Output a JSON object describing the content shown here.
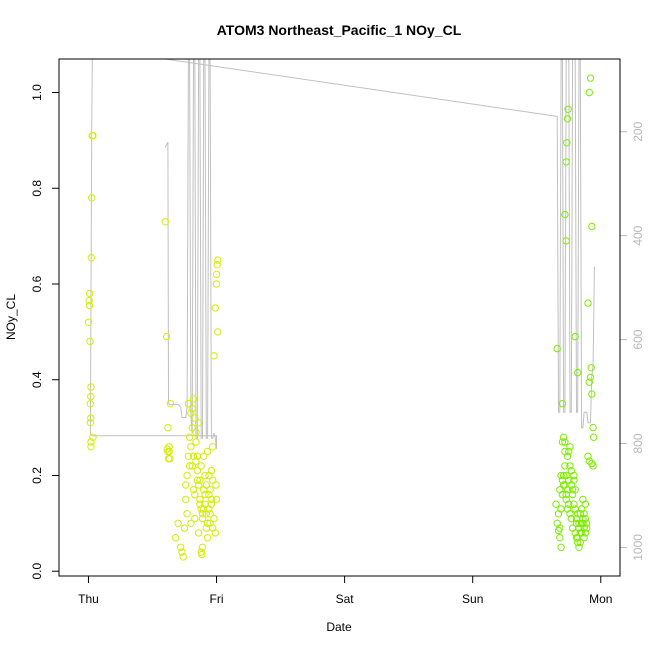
{
  "chart_data": {
    "type": "scatter",
    "title": "ATOM3 Northeast_Pacific_1 NOy_CL",
    "xlabel": "Date",
    "ylabel": "NOy_CL",
    "x_tick_labels": [
      "Thu",
      "Fri",
      "Sat",
      "Sun",
      "Mon"
    ],
    "x_ticks_days": [
      0,
      1,
      2,
      3,
      4
    ],
    "xlim_days": [
      -0.23,
      4.15
    ],
    "ylim": [
      -0.01,
      1.07
    ],
    "y_ticks": [
      0.0,
      0.2,
      0.4,
      0.6,
      0.8,
      1.0
    ],
    "y_tick_labels": [
      "0.0",
      "0.2",
      "0.4",
      "0.6",
      "0.8",
      "1.0"
    ],
    "right_axis": {
      "label": "",
      "lim_reversed": [
        1055,
        60
      ],
      "ticks": [
        200,
        400,
        600,
        800,
        1000
      ],
      "tick_labels": [
        "200",
        "400",
        "600",
        "800",
        "1000"
      ],
      "color": "#b8b8b8"
    },
    "grid": false,
    "colors": {
      "points_early": "#d4ee00",
      "points_late": "#7cee00",
      "line": "#c0c0c0",
      "frame": "#000000"
    },
    "series": [
      {
        "kind": "points",
        "points": [
          [
            0.0,
            0.52
          ],
          [
            0.005,
            0.565
          ],
          [
            0.01,
            0.58
          ],
          [
            0.008,
            0.555
          ],
          [
            0.012,
            0.48
          ],
          [
            0.014,
            0.35
          ],
          [
            0.018,
            0.365
          ],
          [
            0.02,
            0.385
          ],
          [
            0.015,
            0.31
          ],
          [
            0.018,
            0.32
          ],
          [
            0.02,
            0.27
          ],
          [
            0.02,
            0.26
          ],
          [
            0.022,
            0.655
          ],
          [
            0.025,
            0.78
          ],
          [
            0.03,
            0.91
          ],
          [
            0.035,
            0.91
          ],
          [
            0.035,
            0.28
          ],
          [
            0.6,
            0.73
          ],
          [
            0.61,
            0.49
          ],
          [
            0.62,
            0.3
          ],
          [
            0.615,
            0.255
          ],
          [
            0.62,
            0.25
          ],
          [
            0.625,
            0.235
          ],
          [
            0.63,
            0.26
          ],
          [
            0.63,
            0.25
          ],
          [
            0.635,
            0.235
          ],
          [
            0.64,
            0.35
          ],
          [
            0.68,
            0.07
          ],
          [
            0.7,
            0.1
          ],
          [
            0.72,
            0.05
          ],
          [
            0.73,
            0.04
          ],
          [
            0.74,
            0.03
          ],
          [
            0.75,
            0.09
          ],
          [
            0.76,
            0.15
          ],
          [
            0.77,
            0.12
          ],
          [
            0.78,
            0.35
          ],
          [
            0.79,
            0.22
          ],
          [
            0.8,
            0.26
          ],
          [
            0.81,
            0.3
          ],
          [
            0.82,
            0.17
          ],
          [
            0.83,
            0.11
          ],
          [
            0.84,
            0.23
          ],
          [
            0.85,
            0.19
          ],
          [
            0.86,
            0.31
          ],
          [
            0.87,
            0.14
          ],
          [
            0.88,
            0.04
          ],
          [
            0.885,
            0.035
          ],
          [
            0.89,
            0.05
          ],
          [
            0.9,
            0.13
          ],
          [
            0.91,
            0.2
          ],
          [
            0.92,
            0.09
          ],
          [
            0.93,
            0.25
          ],
          [
            0.94,
            0.16
          ],
          [
            0.95,
            0.12
          ],
          [
            0.96,
            0.21
          ],
          [
            0.97,
            0.26
          ],
          [
            0.98,
            0.45
          ],
          [
            0.99,
            0.55
          ],
          [
            1.0,
            0.6
          ],
          [
            1.0,
            0.62
          ],
          [
            1.005,
            0.64
          ],
          [
            1.01,
            0.65
          ],
          [
            1.01,
            0.5
          ],
          [
            1.0,
            0.15
          ],
          [
            0.995,
            0.18
          ],
          [
            0.76,
            0.18
          ],
          [
            0.77,
            0.2
          ],
          [
            0.78,
            0.24
          ],
          [
            0.79,
            0.28
          ],
          [
            0.8,
            0.1
          ],
          [
            0.81,
            0.22
          ],
          [
            0.82,
            0.24
          ],
          [
            0.83,
            0.16
          ],
          [
            0.84,
            0.27
          ],
          [
            0.85,
            0.21
          ],
          [
            0.86,
            0.08
          ],
          [
            0.87,
            0.19
          ],
          [
            0.88,
            0.22
          ],
          [
            0.89,
            0.11
          ],
          [
            0.9,
            0.24
          ],
          [
            0.91,
            0.16
          ],
          [
            0.92,
            0.18
          ],
          [
            0.93,
            0.07
          ],
          [
            0.94,
            0.2
          ],
          [
            0.95,
            0.1
          ],
          [
            0.96,
            0.14
          ],
          [
            0.97,
            0.09
          ],
          [
            0.98,
            0.11
          ],
          [
            0.99,
            0.08
          ],
          [
            0.8,
            0.33
          ],
          [
            0.81,
            0.34
          ],
          [
            0.82,
            0.36
          ],
          [
            0.83,
            0.32
          ],
          [
            0.84,
            0.29
          ],
          [
            0.85,
            0.24
          ],
          [
            0.86,
            0.18
          ],
          [
            0.87,
            0.15
          ],
          [
            0.88,
            0.13
          ],
          [
            0.89,
            0.12
          ],
          [
            0.9,
            0.17
          ],
          [
            0.91,
            0.14
          ],
          [
            0.92,
            0.12
          ],
          [
            0.93,
            0.1
          ],
          [
            0.94,
            0.13
          ],
          [
            0.95,
            0.17
          ],
          [
            0.96,
            0.15
          ],
          [
            0.97,
            0.19
          ]
        ]
      },
      {
        "kind": "points",
        "points": [
          [
            3.66,
            0.465
          ],
          [
            3.7,
            0.35
          ],
          [
            3.72,
            0.27
          ],
          [
            3.72,
            0.745
          ],
          [
            3.73,
            0.69
          ],
          [
            3.73,
            0.855
          ],
          [
            3.735,
            0.895
          ],
          [
            3.74,
            0.945
          ],
          [
            3.745,
            0.965
          ],
          [
            3.8,
            0.49
          ],
          [
            3.82,
            0.415
          ],
          [
            3.9,
            0.56
          ],
          [
            3.91,
            1.0
          ],
          [
            3.92,
            1.03
          ],
          [
            3.93,
            0.72
          ],
          [
            3.91,
            0.395
          ],
          [
            3.92,
            0.405
          ],
          [
            3.925,
            0.425
          ],
          [
            3.93,
            0.37
          ],
          [
            3.94,
            0.3
          ],
          [
            3.945,
            0.28
          ],
          [
            3.94,
            0.22
          ],
          [
            3.93,
            0.225
          ],
          [
            3.65,
            0.14
          ],
          [
            3.66,
            0.1
          ],
          [
            3.67,
            0.085
          ],
          [
            3.68,
            0.07
          ],
          [
            3.69,
            0.05
          ],
          [
            3.7,
            0.19
          ],
          [
            3.71,
            0.2
          ],
          [
            3.72,
            0.18
          ],
          [
            3.73,
            0.16
          ],
          [
            3.74,
            0.24
          ],
          [
            3.75,
            0.25
          ],
          [
            3.76,
            0.22
          ],
          [
            3.77,
            0.11
          ],
          [
            3.78,
            0.09
          ],
          [
            3.79,
            0.19
          ],
          [
            3.8,
            0.17
          ],
          [
            3.81,
            0.07
          ],
          [
            3.82,
            0.06
          ],
          [
            3.83,
            0.1
          ],
          [
            3.84,
            0.12
          ],
          [
            3.85,
            0.13
          ],
          [
            3.86,
            0.11
          ],
          [
            3.87,
            0.09
          ],
          [
            3.88,
            0.14
          ],
          [
            3.89,
            0.1
          ],
          [
            3.9,
            0.24
          ],
          [
            3.91,
            0.23
          ],
          [
            3.67,
            0.12
          ],
          [
            3.68,
            0.17
          ],
          [
            3.69,
            0.2
          ],
          [
            3.7,
            0.27
          ],
          [
            3.71,
            0.28
          ],
          [
            3.72,
            0.22
          ],
          [
            3.73,
            0.15
          ],
          [
            3.74,
            0.13
          ],
          [
            3.75,
            0.19
          ],
          [
            3.76,
            0.26
          ],
          [
            3.77,
            0.21
          ],
          [
            3.78,
            0.17
          ],
          [
            3.79,
            0.14
          ],
          [
            3.8,
            0.08
          ],
          [
            3.81,
            0.1
          ],
          [
            3.82,
            0.12
          ],
          [
            3.83,
            0.09
          ],
          [
            3.84,
            0.08
          ],
          [
            3.85,
            0.1
          ],
          [
            3.86,
            0.15
          ],
          [
            3.87,
            0.07
          ],
          [
            3.88,
            0.11
          ],
          [
            3.89,
            0.09
          ],
          [
            3.68,
            0.09
          ],
          [
            3.69,
            0.13
          ],
          [
            3.7,
            0.16
          ],
          [
            3.71,
            0.18
          ],
          [
            3.72,
            0.25
          ],
          [
            3.73,
            0.2
          ],
          [
            3.74,
            0.17
          ],
          [
            3.75,
            0.14
          ],
          [
            3.76,
            0.12
          ],
          [
            3.77,
            0.18
          ],
          [
            3.78,
            0.16
          ],
          [
            3.79,
            0.2
          ],
          [
            3.8,
            0.13
          ],
          [
            3.81,
            0.11
          ],
          [
            3.82,
            0.07
          ],
          [
            3.83,
            0.05
          ],
          [
            3.84,
            0.06
          ],
          [
            3.85,
            0.08
          ],
          [
            3.86,
            0.1
          ],
          [
            3.87,
            0.12
          ],
          [
            3.88,
            0.08
          ]
        ]
      },
      {
        "kind": "line",
        "right_axis": true,
        "points": [
          [
            0.015,
            782
          ],
          [
            0.02,
            500
          ],
          [
            0.025,
            200
          ],
          [
            0.03,
            60
          ],
          [
            0.035,
            60
          ],
          [
            0.6,
            60
          ],
          [
            3.65,
            170
          ],
          [
            3.66,
            170
          ],
          [
            3.67,
            740
          ],
          [
            3.68,
            740
          ],
          [
            3.69,
            60
          ],
          [
            3.7,
            60
          ],
          [
            3.71,
            740
          ],
          [
            3.72,
            740
          ],
          [
            3.73,
            60
          ],
          [
            3.75,
            60
          ],
          [
            3.76,
            740
          ],
          [
            3.77,
            740
          ],
          [
            3.78,
            60
          ],
          [
            3.8,
            60
          ],
          [
            3.81,
            740
          ],
          [
            3.82,
            740
          ],
          [
            3.83,
            60
          ],
          [
            3.84,
            60
          ],
          [
            3.85,
            770
          ],
          [
            3.86,
            770
          ],
          [
            3.87,
            740
          ],
          [
            3.88,
            740
          ],
          [
            3.89,
            740
          ],
          [
            3.9,
            760
          ],
          [
            3.91,
            760
          ],
          [
            3.92,
            760
          ],
          [
            3.93,
            670
          ],
          [
            3.94,
            650
          ],
          [
            3.95,
            460
          ]
        ]
      },
      {
        "kind": "line",
        "right_axis": true,
        "points": [
          [
            0.015,
            782
          ],
          [
            0.03,
            785
          ],
          [
            0.5,
            785
          ],
          [
            0.9,
            785
          ],
          [
            0.95,
            785
          ],
          [
            0.97,
            785
          ],
          [
            0.98,
            785
          ],
          [
            0.99,
            785
          ],
          [
            1.0,
            785
          ],
          [
            1.0,
            810
          ]
        ]
      },
      {
        "kind": "line",
        "right_axis": true,
        "points": [
          [
            0.6,
            230
          ],
          [
            0.6,
            230
          ],
          [
            0.61,
            225
          ],
          [
            0.62,
            220
          ],
          [
            0.625,
            720
          ],
          [
            0.63,
            725
          ],
          [
            0.7,
            725
          ],
          [
            0.72,
            730
          ],
          [
            0.73,
            750
          ],
          [
            0.76,
            750
          ],
          [
            0.77,
            730
          ],
          [
            0.78,
            60
          ],
          [
            0.79,
            60
          ],
          [
            0.8,
            750
          ],
          [
            0.81,
            780
          ],
          [
            0.82,
            60
          ],
          [
            0.83,
            60
          ],
          [
            0.84,
            790
          ],
          [
            0.85,
            790
          ],
          [
            0.86,
            60
          ],
          [
            0.87,
            60
          ],
          [
            0.88,
            790
          ],
          [
            0.89,
            790
          ],
          [
            0.9,
            60
          ],
          [
            0.91,
            60
          ],
          [
            0.92,
            790
          ],
          [
            0.93,
            790
          ],
          [
            0.94,
            60
          ],
          [
            0.95,
            60
          ],
          [
            0.96,
            790
          ],
          [
            0.97,
            790
          ],
          [
            0.98,
            780
          ],
          [
            0.99,
            790
          ],
          [
            1.0,
            810
          ]
        ]
      }
    ]
  }
}
